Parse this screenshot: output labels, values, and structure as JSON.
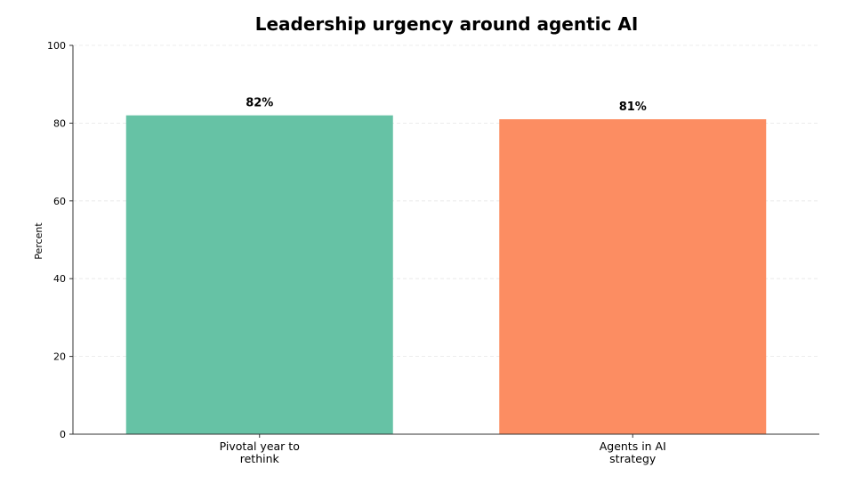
{
  "chart_data": {
    "type": "bar",
    "title": "Leadership urgency around agentic AI",
    "xlabel": "",
    "ylabel": "Percent",
    "categories": [
      [
        "Pivotal year to",
        "rethink"
      ],
      [
        "Agents in AI",
        "strategy"
      ]
    ],
    "values": [
      82,
      81
    ],
    "value_labels": [
      "82%",
      "81%"
    ],
    "colors": [
      "#66c2a5",
      "#fc8d62"
    ],
    "ylim": [
      0,
      100
    ],
    "yticks": [
      0,
      20,
      40,
      60,
      80,
      100
    ],
    "ytick_labels": [
      "0",
      "20",
      "40",
      "60",
      "80",
      "100"
    ],
    "grid": "horizontal-dashed",
    "legend": "none"
  }
}
